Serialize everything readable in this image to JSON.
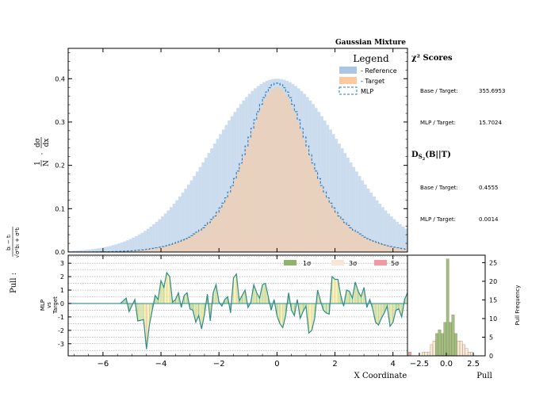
{
  "chart_data": [
    {
      "type": "bar",
      "panel": "main-histogram",
      "title": "Gaussian Mixture",
      "xlabel": "",
      "ylabel": "1/N · dσ/dx",
      "xlim": [
        -7.2,
        4.5
      ],
      "ylim": [
        0,
        0.47
      ],
      "xticks": [
        -6,
        -4,
        -2,
        0,
        2,
        4
      ],
      "yticks": [
        0.0,
        0.1,
        0.2,
        0.3,
        0.4
      ],
      "legend": {
        "title": "Legend",
        "entries": [
          "- Reference",
          "- Target",
          "MLP"
        ],
        "placement": "top-right"
      },
      "series": [
        {
          "name": "- Reference",
          "color": "#a9c7e3",
          "model": "mixture of normals",
          "components": [
            [
              0.0,
              2.22,
              0.4
            ]
          ]
        },
        {
          "name": "- Target",
          "color": "#fbc9a0",
          "model": "mixture of normals",
          "components": [
            [
              0.0,
              0.9,
              0.24
            ],
            [
              0.0,
              1.8,
              0.14
            ]
          ]
        },
        {
          "name": "MLP",
          "color": "#2a7ab8",
          "style": "dashed-step",
          "model": "mixture of normals",
          "components": [
            [
              0.0,
              0.9,
              0.25
            ],
            [
              0.0,
              1.8,
              0.14
            ]
          ]
        }
      ]
    },
    {
      "type": "line",
      "panel": "pull-strip",
      "xlabel": "X Coordinate",
      "ylabel": "MLP vs Target",
      "ylim": [
        -3.9,
        3.6
      ],
      "yticks": [
        -3,
        -2,
        -1,
        0,
        1,
        2,
        3
      ],
      "legend": {
        "entries": [
          "1σ",
          "3σ",
          "5σ"
        ],
        "colors": [
          "#8fb36a",
          "#f6e6d3",
          "#ef9aa3"
        ]
      },
      "x": [
        -7.2,
        -5.4,
        -5.2,
        -5.1,
        -4.9,
        -4.8,
        -4.6,
        -4.5,
        -4.4,
        -4.3,
        -4.2,
        -4.1,
        -4.0,
        -3.9,
        -3.8,
        -3.7,
        -3.6,
        -3.5,
        -3.4,
        -3.3,
        -3.2,
        -3.1,
        -3.0,
        -2.9,
        -2.8,
        -2.7,
        -2.6,
        -2.5,
        -2.4,
        -2.3,
        -2.2,
        -2.1,
        -2.0,
        -1.9,
        -1.8,
        -1.7,
        -1.6,
        -1.5,
        -1.4,
        -1.3,
        -1.2,
        -1.1,
        -1.0,
        -0.9,
        -0.8,
        -0.7,
        -0.6,
        -0.5,
        -0.4,
        -0.3,
        -0.2,
        -0.1,
        0.0,
        0.1,
        0.2,
        0.3,
        0.4,
        0.5,
        0.6,
        0.7,
        0.8,
        0.9,
        1.0,
        1.1,
        1.2,
        1.3,
        1.4,
        1.5,
        1.6,
        1.7,
        1.8,
        1.9,
        2.0,
        2.1,
        2.2,
        2.3,
        2.4,
        2.5,
        2.6,
        2.7,
        2.8,
        2.9,
        3.0,
        3.1,
        3.2,
        3.3,
        3.4,
        3.5,
        3.6,
        3.7,
        3.8,
        3.9,
        4.0,
        4.1,
        4.2,
        4.3,
        4.4,
        4.5
      ],
      "y": [
        0.0,
        0.0,
        0.4,
        -0.6,
        0.3,
        -1.3,
        -1.2,
        -3.4,
        -1.6,
        -0.5,
        0.6,
        0.3,
        1.7,
        1.2,
        2.3,
        2.0,
        0.1,
        0.3,
        0.8,
        -0.3,
        0.6,
        0.8,
        -0.4,
        -0.5,
        -1.4,
        -0.9,
        -1.9,
        -0.8,
        0.7,
        -1.3,
        0.8,
        1.4,
        0.1,
        -0.2,
        0.3,
        0.5,
        -0.7,
        1.9,
        2.2,
        0.2,
        0.6,
        1.0,
        -0.3,
        0.1,
        1.4,
        0.8,
        0.4,
        1.4,
        1.5,
        0.5,
        -0.5,
        0.3,
        -0.9,
        -1.5,
        -1.8,
        -0.9,
        0.8,
        -0.5,
        -0.9,
        0.3,
        -1.1,
        -0.6,
        -0.2,
        -2.2,
        -2.0,
        -1.1,
        1.0,
        0.2,
        -0.5,
        -0.7,
        -0.8,
        2.0,
        1.8,
        1.8,
        0.6,
        -0.2,
        1.0,
        0.9,
        0.4,
        1.6,
        0.9,
        0.5,
        1.2,
        -0.3,
        0.3,
        -0.4,
        -1.4,
        -1.6,
        -1.1,
        -0.7,
        -0.2,
        -1.7,
        -1.4,
        -0.5,
        -0.4,
        -1.0,
        0.3,
        0.8
      ]
    },
    {
      "type": "bar",
      "panel": "pull-frequency",
      "orientation": "histogram",
      "xlabel": "Pull",
      "ylabel": "Pull Frequency",
      "xlim": [
        -3.6,
        3.6
      ],
      "ylim": [
        0,
        27
      ],
      "xticks": [
        -2.5,
        0.0,
        2.5
      ],
      "yticks": [
        0,
        5,
        10,
        15,
        20,
        25
      ],
      "bin_width": 0.25,
      "bins": [
        -3.5,
        -3.25,
        -3.0,
        -2.75,
        -2.5,
        -2.25,
        -2.0,
        -1.75,
        -1.5,
        -1.25,
        -1.0,
        -0.75,
        -0.5,
        -0.25,
        0.0,
        0.25,
        0.5,
        0.75,
        1.0,
        1.25,
        1.5,
        1.75,
        2.0,
        2.25,
        2.5,
        2.75
      ],
      "values": [
        1,
        0,
        0,
        0,
        0,
        1,
        1,
        1,
        3,
        4,
        6,
        7,
        6,
        9,
        26,
        9,
        11,
        6,
        4,
        4,
        3,
        2,
        1,
        1,
        0,
        0
      ]
    }
  ],
  "side_panel": {
    "chi2": {
      "title": "χ² Scores",
      "base_label": "Base / Target:",
      "base_value": "355.6953",
      "mlp_label": "MLP / Target:",
      "mlp_value": "15.7024"
    },
    "ds": {
      "title": "D",
      "subscript": "S",
      "subsub": "2",
      "rest": "(B||T)",
      "base_label": "Base / Target:",
      "base_value": "0.4555",
      "mlp_label": "MLP / Target:",
      "mlp_value": "0.0014"
    }
  },
  "strip_pull_formula": {
    "prefix": "Pull :",
    "numerator": "bᵢ − tᵢ",
    "denominator": "√σ²bᵢ + σ²tᵢ"
  },
  "main_ylabel": {
    "frac1_num": "1",
    "frac1_den": "N",
    "dot": "·",
    "frac2_num": "dσ",
    "frac2_den": "dx"
  },
  "strip_ylabel_lines": [
    "MLP",
    "vs",
    "Target"
  ]
}
